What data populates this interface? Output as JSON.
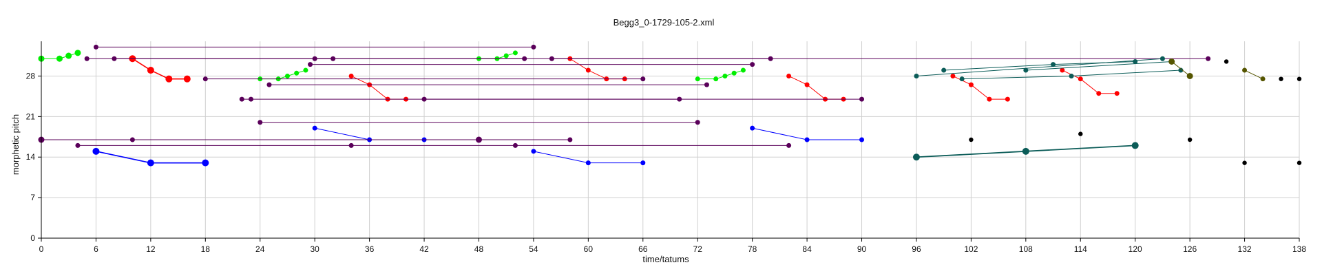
{
  "chart_data": {
    "type": "scatter",
    "title": "Begg3_0-1729-105-2.xml",
    "xlabel": "time/tatums",
    "ylabel": "morphetic pitch",
    "xlim": [
      0,
      138
    ],
    "ylim": [
      0,
      34
    ],
    "xticks": [
      0,
      6,
      12,
      18,
      24,
      30,
      36,
      42,
      48,
      54,
      60,
      66,
      72,
      78,
      84,
      90,
      96,
      102,
      108,
      114,
      120,
      126,
      132,
      138
    ],
    "yticks": [
      0,
      7,
      14,
      21,
      28
    ],
    "grid": true,
    "legend": "none",
    "series": [
      {
        "color": "#00ee00",
        "stroke": 1,
        "r": 4.5,
        "points": [
          [
            0,
            31
          ],
          [
            2,
            31
          ],
          [
            3,
            31.5
          ],
          [
            4,
            32
          ]
        ]
      },
      {
        "color": "#00ee00",
        "stroke": 1,
        "r": 3.5,
        "points": [
          [
            24,
            27.5
          ],
          [
            26,
            27.5
          ],
          [
            27,
            28
          ],
          [
            28,
            28.5
          ],
          [
            29,
            29
          ]
        ]
      },
      {
        "color": "#00ee00",
        "stroke": 1,
        "r": 3.5,
        "points": [
          [
            48,
            31
          ],
          [
            50,
            31
          ],
          [
            51,
            31.5
          ],
          [
            52,
            32
          ]
        ]
      },
      {
        "color": "#00ee00",
        "stroke": 1,
        "r": 3.5,
        "points": [
          [
            72,
            27.5
          ],
          [
            74,
            27.5
          ],
          [
            75,
            28
          ],
          [
            76,
            28.5
          ],
          [
            77,
            29
          ]
        ]
      },
      {
        "color": "#ff0000",
        "stroke": 1.6,
        "r": 5,
        "points": [
          [
            10,
            31
          ],
          [
            12,
            29
          ],
          [
            14,
            27.5
          ],
          [
            16,
            27.5
          ]
        ]
      },
      {
        "color": "#ff0000",
        "stroke": 1,
        "r": 3.5,
        "points": [
          [
            34,
            28
          ],
          [
            36,
            26.5
          ],
          [
            38,
            24
          ],
          [
            40,
            24
          ]
        ]
      },
      {
        "color": "#ff0000",
        "stroke": 1,
        "r": 3.5,
        "points": [
          [
            58,
            31
          ],
          [
            60,
            29
          ],
          [
            62,
            27.5
          ],
          [
            64,
            27.5
          ]
        ]
      },
      {
        "color": "#ff0000",
        "stroke": 1,
        "r": 3.5,
        "points": [
          [
            82,
            28
          ],
          [
            84,
            26.5
          ],
          [
            86,
            24
          ],
          [
            88,
            24
          ]
        ]
      },
      {
        "color": "#ff0000",
        "stroke": 1,
        "r": 3.5,
        "points": [
          [
            100,
            28
          ],
          [
            102,
            26.5
          ],
          [
            104,
            24
          ],
          [
            106,
            24
          ]
        ]
      },
      {
        "color": "#ff0000",
        "stroke": 1,
        "r": 3.5,
        "points": [
          [
            112,
            29
          ],
          [
            114,
            27.5
          ],
          [
            116,
            25
          ],
          [
            118,
            25
          ]
        ]
      },
      {
        "color": "#0000ff",
        "stroke": 1.6,
        "r": 5,
        "points": [
          [
            6,
            15
          ],
          [
            12,
            13
          ],
          [
            18,
            13
          ]
        ]
      },
      {
        "color": "#0000ff",
        "stroke": 1,
        "r": 3.5,
        "points": [
          [
            30,
            19
          ],
          [
            36,
            17
          ],
          [
            42,
            17
          ],
          [
            48,
            17
          ]
        ]
      },
      {
        "color": "#0000ff",
        "stroke": 1,
        "r": 3.5,
        "points": [
          [
            54,
            15
          ],
          [
            60,
            13
          ],
          [
            66,
            13
          ]
        ]
      },
      {
        "color": "#0000ff",
        "stroke": 1,
        "r": 3.5,
        "points": [
          [
            78,
            19
          ],
          [
            84,
            17
          ],
          [
            90,
            17
          ]
        ]
      },
      {
        "color": "#5a005a",
        "stroke": 1,
        "r": 3.5,
        "points": [
          [
            6,
            33
          ],
          [
            54,
            33
          ]
        ]
      },
      {
        "color": "#5a005a",
        "stroke": 1,
        "r": 3.5,
        "points": [
          [
            5,
            31
          ],
          [
            128,
            31
          ]
        ]
      },
      {
        "color": "#5a005a",
        "stroke": 1,
        "r": 3.5,
        "points": [
          [
            8,
            31
          ],
          [
            32,
            31
          ]
        ]
      },
      {
        "color": "#5a005a",
        "stroke": 1,
        "r": 3.5,
        "points": [
          [
            30,
            31
          ],
          [
            53,
            31
          ]
        ]
      },
      {
        "color": "#5a005a",
        "stroke": 1,
        "r": 3.5,
        "points": [
          [
            29.5,
            30
          ],
          [
            78,
            30
          ]
        ]
      },
      {
        "color": "#5a005a",
        "stroke": 1,
        "r": 3.5,
        "points": [
          [
            56,
            31
          ],
          [
            80,
            31
          ]
        ]
      },
      {
        "color": "#5a005a",
        "stroke": 1,
        "r": 3.5,
        "points": [
          [
            18,
            27.5
          ],
          [
            66,
            27.5
          ]
        ]
      },
      {
        "color": "#5a005a",
        "stroke": 1,
        "r": 3.5,
        "points": [
          [
            25,
            26.5
          ],
          [
            73,
            26.5
          ]
        ]
      },
      {
        "color": "#5a005a",
        "stroke": 1,
        "r": 3.5,
        "points": [
          [
            22,
            24
          ],
          [
            23,
            24
          ],
          [
            70,
            24
          ]
        ]
      },
      {
        "color": "#5a005a",
        "stroke": 1,
        "r": 3.5,
        "points": [
          [
            42,
            24
          ],
          [
            90,
            24
          ]
        ]
      },
      {
        "color": "#5a005a",
        "stroke": 1,
        "r": 3.5,
        "points": [
          [
            24,
            20
          ],
          [
            72,
            20
          ]
        ]
      },
      {
        "color": "#5a005a",
        "stroke": 1,
        "r": 4.5,
        "points": [
          [
            0,
            17
          ],
          [
            48,
            17
          ]
        ]
      },
      {
        "color": "#5a005a",
        "stroke": 1,
        "r": 3.5,
        "points": [
          [
            10,
            17
          ],
          [
            58,
            17
          ]
        ]
      },
      {
        "color": "#5a005a",
        "stroke": 1,
        "r": 3.5,
        "points": [
          [
            4,
            16
          ],
          [
            34,
            16
          ],
          [
            52,
            16
          ],
          [
            82,
            16
          ]
        ]
      },
      {
        "color": "#0b5c58",
        "stroke": 1,
        "r": 3.5,
        "points": [
          [
            96,
            28
          ],
          [
            123,
            31
          ]
        ]
      },
      {
        "color": "#0b5c58",
        "stroke": 1,
        "r": 3.5,
        "points": [
          [
            99,
            29
          ],
          [
            111,
            30
          ],
          [
            120,
            30.5
          ]
        ]
      },
      {
        "color": "#0b5c58",
        "stroke": 1,
        "r": 3.5,
        "points": [
          [
            101,
            27.5
          ],
          [
            113,
            28
          ],
          [
            125,
            29
          ]
        ]
      },
      {
        "color": "#0b5c58",
        "stroke": 1,
        "r": 3.5,
        "points": [
          [
            108,
            29
          ],
          [
            124,
            30.5
          ]
        ]
      },
      {
        "color": "#0b5c58",
        "stroke": 1.8,
        "r": 5,
        "points": [
          [
            96,
            14
          ],
          [
            108,
            15
          ],
          [
            120,
            16
          ]
        ]
      },
      {
        "color": "#555500",
        "stroke": 1,
        "r": 4.5,
        "points": [
          [
            124,
            30.5
          ],
          [
            126,
            28
          ]
        ]
      },
      {
        "color": "#555500",
        "stroke": 1,
        "r": 3.5,
        "points": [
          [
            132,
            29
          ],
          [
            134,
            27.5
          ]
        ]
      },
      {
        "color": "#000000",
        "stroke": 0,
        "r": 3.2,
        "points": [
          [
            130,
            30.5
          ],
          [
            136,
            27.5
          ],
          [
            138,
            27.5
          ],
          [
            102,
            17
          ],
          [
            114,
            18
          ],
          [
            126,
            17
          ],
          [
            132,
            13
          ],
          [
            138,
            13
          ]
        ]
      }
    ]
  }
}
